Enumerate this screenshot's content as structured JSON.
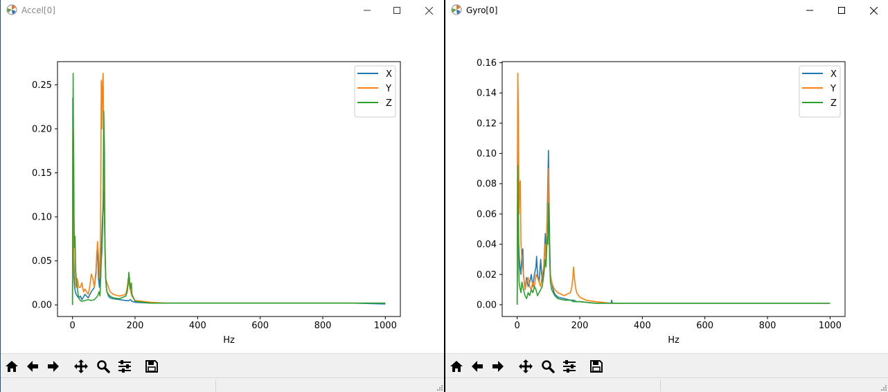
{
  "windows": [
    {
      "title": "Accel[0]",
      "toolbar": [
        "home-icon",
        "back-arrow-icon",
        "forward-arrow-icon",
        "pan-icon",
        "zoom-icon",
        "configure-subplots-icon",
        "save-icon"
      ]
    },
    {
      "title": "Gyro[0]",
      "toolbar": [
        "home-icon",
        "back-arrow-icon",
        "forward-arrow-icon",
        "pan-icon",
        "zoom-icon",
        "configure-subplots-icon",
        "save-icon"
      ]
    }
  ],
  "colors": {
    "X": "#1f77b4",
    "Y": "#ff7f0e",
    "Z": "#2ca02c"
  },
  "chart_data": [
    {
      "type": "line",
      "title": "",
      "xlabel": "Hz",
      "ylabel": "",
      "xlim": [
        -48,
        1048
      ],
      "ylim": [
        -0.0132,
        0.2763
      ],
      "xticks": [
        0,
        200,
        400,
        600,
        800,
        1000
      ],
      "xtick_labels": [
        "0",
        "200",
        "400",
        "600",
        "800",
        "1000"
      ],
      "yticks": [
        0.0,
        0.05,
        0.1,
        0.15,
        0.2,
        0.25
      ],
      "ytick_labels": [
        "0.00",
        "0.05",
        "0.10",
        "0.15",
        "0.20",
        "0.25"
      ],
      "legend": "upper right",
      "grid": false,
      "series": [
        {
          "name": "X",
          "color": "#1f77b4",
          "x": [
            0,
            1,
            2,
            3,
            4,
            5,
            7,
            9,
            12,
            15,
            20,
            25,
            30,
            40,
            50,
            60,
            70,
            75,
            78,
            80,
            83,
            86,
            88,
            90,
            92,
            94,
            96,
            98,
            100,
            102,
            104,
            106,
            108,
            110,
            115,
            120,
            130,
            150,
            170,
            180,
            185,
            190,
            200,
            250,
            300,
            350,
            400,
            500,
            600,
            700,
            800,
            900,
            1000
          ],
          "y": [
            0.0,
            0.235,
            0.14,
            0.09,
            0.05,
            0.03,
            0.02,
            0.015,
            0.012,
            0.01,
            0.008,
            0.01,
            0.006,
            0.012,
            0.008,
            0.015,
            0.02,
            0.035,
            0.06,
            0.065,
            0.03,
            0.02,
            0.045,
            0.03,
            0.06,
            0.08,
            0.1,
            0.11,
            0.13,
            0.1,
            0.06,
            0.03,
            0.02,
            0.015,
            0.01,
            0.008,
            0.007,
            0.006,
            0.005,
            0.005,
            0.006,
            0.004,
            0.003,
            0.002,
            0.002,
            0.002,
            0.002,
            0.002,
            0.002,
            0.002,
            0.002,
            0.002,
            0.001
          ]
        },
        {
          "name": "Y",
          "color": "#ff7f0e",
          "x": [
            0,
            1,
            2,
            3,
            4,
            5,
            7,
            9,
            12,
            15,
            20,
            25,
            30,
            35,
            40,
            50,
            55,
            60,
            65,
            70,
            75,
            80,
            83,
            86,
            88,
            90,
            92,
            94,
            96,
            98,
            100,
            102,
            104,
            106,
            110,
            115,
            120,
            130,
            150,
            170,
            175,
            178,
            180,
            183,
            186,
            190,
            200,
            250,
            300,
            350,
            400,
            500,
            600,
            700,
            800,
            900,
            1000
          ],
          "y": [
            0.0,
            0.2,
            0.16,
            0.1,
            0.07,
            0.05,
            0.035,
            0.025,
            0.02,
            0.03,
            0.02,
            0.02,
            0.025,
            0.015,
            0.018,
            0.012,
            0.02,
            0.035,
            0.03,
            0.02,
            0.04,
            0.072,
            0.055,
            0.03,
            0.05,
            0.09,
            0.255,
            0.2,
            0.25,
            0.263,
            0.18,
            0.12,
            0.06,
            0.03,
            0.025,
            0.02,
            0.015,
            0.012,
            0.01,
            0.012,
            0.02,
            0.03,
            0.025,
            0.02,
            0.015,
            0.01,
            0.005,
            0.003,
            0.002,
            0.002,
            0.002,
            0.002,
            0.002,
            0.002,
            0.002,
            0.002,
            0.002
          ]
        },
        {
          "name": "Z",
          "color": "#2ca02c",
          "x": [
            0,
            1,
            2,
            3,
            4,
            5,
            6,
            8,
            10,
            12,
            15,
            18,
            20,
            25,
            30,
            40,
            50,
            60,
            70,
            80,
            85,
            88,
            90,
            92,
            94,
            96,
            98,
            100,
            102,
            104,
            106,
            108,
            110,
            115,
            120,
            130,
            150,
            170,
            175,
            178,
            180,
            182,
            185,
            188,
            190,
            195,
            200,
            250,
            300,
            350,
            400,
            500,
            600,
            700,
            800,
            900,
            1000
          ],
          "y": [
            0.0,
            0.1,
            0.263,
            0.2,
            0.16,
            0.1,
            0.065,
            0.078,
            0.04,
            0.03,
            0.02,
            0.012,
            0.008,
            0.005,
            0.004,
            0.005,
            0.006,
            0.005,
            0.006,
            0.01,
            0.015,
            0.01,
            0.03,
            0.05,
            0.06,
            0.085,
            0.12,
            0.22,
            0.18,
            0.07,
            0.03,
            0.02,
            0.015,
            0.012,
            0.01,
            0.008,
            0.007,
            0.01,
            0.015,
            0.025,
            0.037,
            0.03,
            0.018,
            0.025,
            0.012,
            0.008,
            0.004,
            0.002,
            0.002,
            0.002,
            0.002,
            0.002,
            0.002,
            0.002,
            0.002,
            0.002,
            0.002
          ]
        }
      ]
    },
    {
      "type": "line",
      "title": "",
      "xlabel": "Hz",
      "ylabel": "",
      "xlim": [
        -48,
        1048
      ],
      "ylim": [
        -0.0078,
        0.1607
      ],
      "xticks": [
        0,
        200,
        400,
        600,
        800,
        1000
      ],
      "xtick_labels": [
        "0",
        "200",
        "400",
        "600",
        "800",
        "1000"
      ],
      "yticks": [
        0.0,
        0.02,
        0.04,
        0.06,
        0.08,
        0.1,
        0.12,
        0.14,
        0.16
      ],
      "ytick_labels": [
        "0.00",
        "0.02",
        "0.04",
        "0.06",
        "0.08",
        "0.10",
        "0.12",
        "0.14",
        "0.16"
      ],
      "legend": "upper right",
      "grid": false,
      "series": [
        {
          "name": "X",
          "color": "#1f77b4",
          "x": [
            0,
            1,
            2,
            3,
            4,
            5,
            7,
            9,
            12,
            15,
            18,
            20,
            25,
            30,
            35,
            40,
            45,
            50,
            55,
            60,
            62,
            65,
            70,
            75,
            78,
            80,
            85,
            90,
            92,
            94,
            96,
            98,
            100,
            102,
            104,
            106,
            110,
            115,
            120,
            130,
            150,
            170,
            180,
            190,
            200,
            250,
            300,
            302,
            304,
            350,
            400,
            500,
            600,
            700,
            800,
            900,
            1000
          ],
          "y": [
            0.0,
            0.06,
            0.1,
            0.08,
            0.06,
            0.04,
            0.03,
            0.025,
            0.02,
            0.035,
            0.037,
            0.02,
            0.01,
            0.018,
            0.012,
            0.015,
            0.02,
            0.012,
            0.02,
            0.025,
            0.032,
            0.02,
            0.015,
            0.03,
            0.02,
            0.015,
            0.025,
            0.047,
            0.03,
            0.04,
            0.06,
            0.08,
            0.102,
            0.07,
            0.04,
            0.02,
            0.015,
            0.01,
            0.007,
            0.005,
            0.004,
            0.003,
            0.003,
            0.002,
            0.002,
            0.001,
            0.001,
            0.003,
            0.001,
            0.001,
            0.001,
            0.001,
            0.001,
            0.001,
            0.001,
            0.001,
            0.001
          ]
        },
        {
          "name": "Y",
          "color": "#ff7f0e",
          "x": [
            0,
            1,
            2,
            3,
            4,
            5,
            6,
            8,
            10,
            12,
            15,
            20,
            25,
            30,
            35,
            40,
            45,
            50,
            55,
            60,
            65,
            70,
            75,
            80,
            85,
            88,
            90,
            92,
            94,
            96,
            98,
            100,
            102,
            104,
            106,
            110,
            115,
            120,
            130,
            150,
            170,
            175,
            178,
            180,
            183,
            186,
            190,
            200,
            220,
            250,
            300,
            350,
            400,
            500,
            600,
            700,
            800,
            900,
            1000
          ],
          "y": [
            0.0,
            0.1,
            0.153,
            0.14,
            0.12,
            0.09,
            0.06,
            0.08,
            0.082,
            0.04,
            0.03,
            0.02,
            0.01,
            0.015,
            0.018,
            0.012,
            0.01,
            0.015,
            0.012,
            0.02,
            0.018,
            0.015,
            0.012,
            0.02,
            0.025,
            0.035,
            0.04,
            0.03,
            0.045,
            0.06,
            0.065,
            0.09,
            0.05,
            0.03,
            0.02,
            0.015,
            0.012,
            0.01,
            0.008,
            0.006,
            0.008,
            0.012,
            0.018,
            0.025,
            0.018,
            0.012,
            0.008,
            0.005,
            0.003,
            0.002,
            0.001,
            0.001,
            0.001,
            0.001,
            0.001,
            0.001,
            0.001,
            0.001,
            0.001
          ]
        },
        {
          "name": "Z",
          "color": "#2ca02c",
          "x": [
            0,
            1,
            2,
            3,
            4,
            5,
            6,
            8,
            10,
            12,
            15,
            18,
            20,
            25,
            30,
            35,
            40,
            45,
            50,
            55,
            60,
            65,
            70,
            75,
            80,
            85,
            90,
            92,
            94,
            96,
            98,
            100,
            102,
            104,
            106,
            110,
            115,
            120,
            130,
            150,
            170,
            180,
            190,
            200,
            250,
            300,
            350,
            400,
            500,
            600,
            700,
            800,
            900,
            1000
          ],
          "y": [
            0.0,
            0.05,
            0.092,
            0.07,
            0.05,
            0.03,
            0.015,
            0.012,
            0.01,
            0.008,
            0.015,
            0.012,
            0.01,
            0.006,
            0.004,
            0.008,
            0.006,
            0.01,
            0.008,
            0.012,
            0.01,
            0.006,
            0.008,
            0.01,
            0.012,
            0.02,
            0.03,
            0.025,
            0.035,
            0.045,
            0.04,
            0.067,
            0.05,
            0.03,
            0.015,
            0.01,
            0.008,
            0.006,
            0.004,
            0.003,
            0.003,
            0.002,
            0.002,
            0.002,
            0.001,
            0.001,
            0.001,
            0.001,
            0.001,
            0.001,
            0.001,
            0.001,
            0.001,
            0.001
          ]
        }
      ]
    }
  ]
}
